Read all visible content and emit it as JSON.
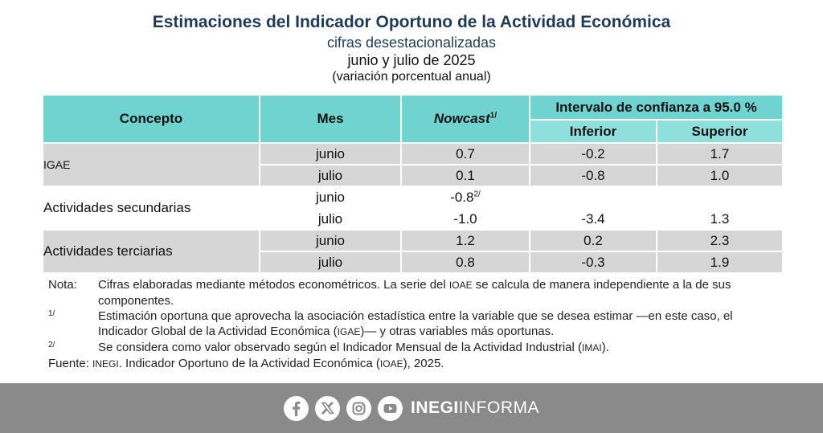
{
  "header": {
    "title": "Estimaciones del Indicador Oportuno de la Actividad Económica",
    "subtitle": "cifras desestacionalizadas",
    "period": "junio y julio de 2025",
    "unit": "(variación porcentual anual)"
  },
  "table": {
    "col_concepto": "Concepto",
    "col_mes": "Mes",
    "col_nowcast": "Nowcast",
    "col_nowcast_mark": "1/",
    "col_intervalo": "Intervalo de confianza a 95.0 %",
    "col_inferior": "Inferior",
    "col_superior": "Superior",
    "rows": [
      {
        "concept": "IGAE",
        "mes": "junio",
        "nowcast": "0.7",
        "nowcast_mark": "",
        "inferior": "-0.2",
        "superior": "1.7"
      },
      {
        "concept": "",
        "mes": "julio",
        "nowcast": "0.1",
        "nowcast_mark": "",
        "inferior": "-0.8",
        "superior": "1.0"
      },
      {
        "concept": "Actividades secundarias",
        "mes": "junio",
        "nowcast": "-0.8",
        "nowcast_mark": "2/",
        "inferior": "",
        "superior": ""
      },
      {
        "concept": "",
        "mes": "julio",
        "nowcast": "-1.0",
        "nowcast_mark": "",
        "inferior": "-3.4",
        "superior": "1.3"
      },
      {
        "concept": "Actividades terciarias",
        "mes": "junio",
        "nowcast": "1.2",
        "nowcast_mark": "",
        "inferior": "0.2",
        "superior": "2.3"
      },
      {
        "concept": "",
        "mes": "julio",
        "nowcast": "0.8",
        "nowcast_mark": "",
        "inferior": "-0.3",
        "superior": "1.9"
      }
    ]
  },
  "notes": {
    "nota_label": "Nota:",
    "nota_text_a": "Cifras elaboradas mediante métodos econométricos. La serie del ",
    "nota_sc": "IOAE",
    "nota_text_b": " se calcula de manera independiente a la de sus componentes.",
    "n1_label": "1/",
    "n1_text_a": "Estimación oportuna que aprovecha la asociación estadística entre la variable que se desea estimar —en este caso, el Indicador Global de la Actividad Económica (",
    "n1_sc": "IGAE",
    "n1_text_b": ")— y otras variables más oportunas.",
    "n2_label": "2/",
    "n2_text_a": "Se considera como valor observado según el Indicador Mensual de la Actividad Industrial (",
    "n2_sc": "IMAI",
    "n2_text_b": ").",
    "fuente_label": "Fuente: ",
    "fuente_sc1": "INEGI",
    "fuente_text_a": ". Indicador Oportuno de la Actividad Económica (",
    "fuente_sc2": "IOAE",
    "fuente_text_b": "), 2025."
  },
  "footer": {
    "brand_a": "INEGI",
    "brand_b": "INFORMA",
    "icons": [
      "facebook-icon",
      "x-icon",
      "instagram-icon",
      "youtube-icon"
    ]
  }
}
